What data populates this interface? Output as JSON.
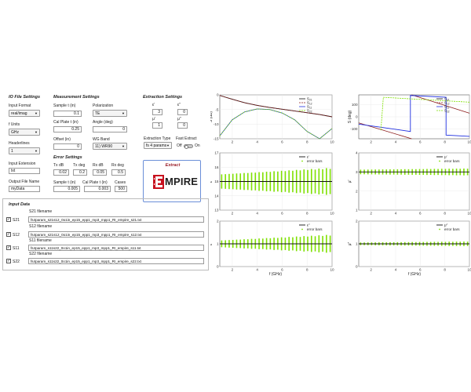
{
  "io": {
    "title": "IO File Settings",
    "input_format_label": "Input Format",
    "input_format_value": "real/imag",
    "f_units_label": "f Units",
    "f_units_value": "GHz",
    "headerlines_label": "Headerlines",
    "headerlines_value": "1",
    "input_extension_label": "Input Extension",
    "input_extension_value": "txt",
    "output_file_label": "Output File Name",
    "output_file_value": "myData"
  },
  "measurement": {
    "title": "Measurement Settings",
    "sample_t_label": "Sample t (in)",
    "sample_t_value": "0.1",
    "polarization_label": "Polarization",
    "polarization_value": "TE",
    "cal_plate_label": "Cal Plate t (in)",
    "cal_plate_value": "0.25",
    "angle_label": "Angle (deg)",
    "angle_value": "0",
    "offset_label": "Offset (in)",
    "offset_value": "0",
    "wg_band_label": "WG Band",
    "wg_band_value": "11) WR90"
  },
  "error": {
    "title": "Error Settings",
    "tx_db_label": "Tx dB",
    "tx_db_value": "0.02",
    "tx_deg_label": "Tx deg",
    "tx_deg_value": "0.2",
    "rx_db_label": "Rx dB",
    "rx_db_value": "0.05",
    "rx_deg_label": "Rx deg",
    "rx_deg_value": "0.5",
    "sample_t_label": "Sample t (in)",
    "sample_t_value": "0.005",
    "cal_plate_label": "Cal Plate t (in)",
    "cal_plate_value": "0.003",
    "cases_label": "Cases",
    "cases_value": "500"
  },
  "extraction": {
    "title": "Extraction Settings",
    "eps_r_label": "ε′",
    "eps_r_value": "3",
    "eps_i_label": "ε″",
    "eps_i_value": "0",
    "mu_r_label": "μ′",
    "mu_r_value": "1",
    "mu_i_label": "μ″",
    "mu_i_value": "0",
    "type_label": "Extraction Type",
    "type_value": "fs 4 params",
    "fast_label": "Fast Extract",
    "off_label": "Off",
    "on_label": "On",
    "extract_label": "Extract",
    "logo_text": "MPIRE"
  },
  "input_data": {
    "title": "Input Data",
    "rows": [
      {
        "check_label": "S21",
        "heading": "S21 filename",
        "file": "fs4param_s21s12_0o1in_ep15_epp1_mp3_mpp1_RI_empire_s21.txt",
        "checked": "✓"
      },
      {
        "check_label": "S12",
        "heading": "S12 filename",
        "file": "fs4param_s21s12_0o1in_ep15_epp1_mp3_mpp1_RI_empire_s12.txt",
        "checked": "✓"
      },
      {
        "check_label": "S11",
        "heading": "S11 filename",
        "file": "fs4param_s11s22_0o1in_ep15_epp1_mp3_mpp1_RI_empire_s11.txt",
        "checked": "✓"
      },
      {
        "check_label": "S22",
        "heading": "S22 filename",
        "file": "fs4param_s11s22_0o1in_ep15_epp1_mp3_mpp1_RI_empire_s22.txt",
        "checked": "✓"
      }
    ]
  },
  "colors": {
    "dark_red": "#8b1a1a",
    "green": "#7fe000",
    "blue": "#1f2fe0",
    "teal": "#2a8aa0"
  },
  "chart_data": [
    {
      "type": "line",
      "id": "s_db",
      "ylabel": "S (dB)",
      "xlim": [
        1,
        10
      ],
      "ylim": [
        -15,
        0
      ],
      "xticks": [
        2,
        4,
        6,
        8,
        10
      ],
      "yticks": [
        0,
        -5,
        -10,
        -15
      ],
      "legend": [
        "S21",
        "S12",
        "S11",
        "S22"
      ],
      "series": [
        {
          "name": "S21",
          "x": [
            1,
            2,
            3,
            4,
            5,
            6,
            7,
            8,
            9,
            10
          ],
          "y": [
            -0.2,
            -1.5,
            -2.7,
            -3.6,
            -4.3,
            -4.9,
            -5.5,
            -6.1,
            -6.7,
            -7.5
          ]
        },
        {
          "name": "S11",
          "x": [
            1,
            2,
            3,
            4,
            5,
            6,
            7,
            8,
            9,
            10
          ],
          "y": [
            -14,
            -8.5,
            -5.8,
            -4.8,
            -5.0,
            -6.2,
            -8.5,
            -12.5,
            -15,
            -11.5
          ]
        }
      ]
    },
    {
      "type": "line",
      "id": "s_deg",
      "ylabel": "S (deg)",
      "xlim": [
        1,
        10
      ],
      "ylim": [
        -180,
        180
      ],
      "xticks": [
        2,
        4,
        6,
        8,
        10
      ],
      "yticks": [
        100,
        0,
        -100
      ],
      "legend": [
        "S21",
        "S12",
        "S11",
        "S22"
      ],
      "series": [
        {
          "name": "S21",
          "x": [
            1,
            5.3,
            5.3,
            10
          ],
          "y": [
            -50,
            -180,
            180,
            30
          ]
        },
        {
          "name": "S11",
          "x": [
            1,
            5.2,
            5.2,
            8.1,
            8.1,
            10
          ],
          "y": [
            -60,
            -120,
            175,
            160,
            -150,
            -160
          ]
        },
        {
          "name": "S22",
          "x": [
            2.8,
            3.0,
            10
          ],
          "y": [
            -110,
            160,
            120
          ]
        }
      ]
    },
    {
      "type": "line",
      "id": "eps_real",
      "ylabel": "ε′",
      "xlim": [
        1,
        10
      ],
      "ylim": [
        13,
        17
      ],
      "xticks": [
        2,
        4,
        6,
        8,
        10
      ],
      "yticks": [
        13,
        14,
        15,
        16,
        17
      ],
      "legend": [
        "ε′",
        "error bars"
      ],
      "center": 15,
      "err_start": 0.5,
      "err_end": 0.95
    },
    {
      "type": "line",
      "id": "mu_real",
      "ylabel": "μ′",
      "xlim": [
        1,
        10
      ],
      "ylim": [
        1,
        4
      ],
      "xticks": [
        2,
        4,
        6,
        8,
        10
      ],
      "yticks": [
        1,
        2,
        3,
        4
      ],
      "legend": [
        "μ′",
        "error bars"
      ],
      "center": 3,
      "err_start": 0.12,
      "err_end": 0.18
    },
    {
      "type": "line",
      "id": "eps_imag",
      "ylabel": "ε″",
      "xlim": [
        1,
        10
      ],
      "ylim": [
        0,
        2
      ],
      "xticks": [
        2,
        4,
        6,
        8,
        10
      ],
      "yticks": [
        0,
        1,
        2
      ],
      "legend": [
        "ε″",
        "error bars"
      ],
      "center": 1,
      "err_start": 0.15,
      "err_end": 0.4
    },
    {
      "type": "line",
      "id": "mu_imag",
      "ylabel": "μ″",
      "xlim": [
        1,
        10
      ],
      "ylim": [
        0,
        2
      ],
      "xticks": [
        2,
        4,
        6,
        8,
        10
      ],
      "yticks": [
        0,
        1,
        2
      ],
      "legend": [
        "μ″",
        "error bars"
      ],
      "center": 1,
      "err_start": 0.06,
      "err_end": 0.1
    }
  ],
  "xlabel": "f (GHz)"
}
